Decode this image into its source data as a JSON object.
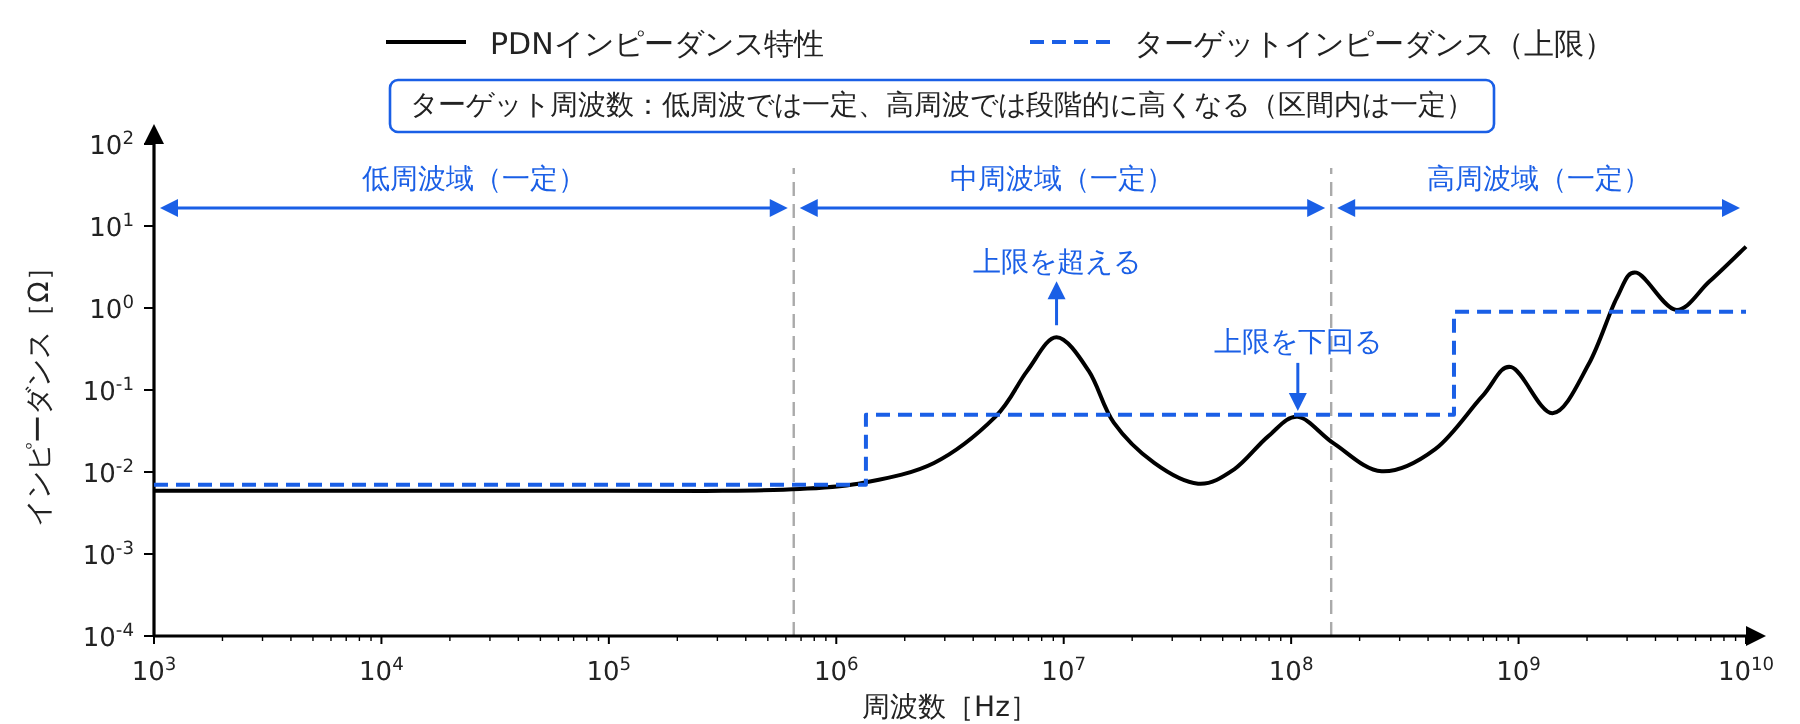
{
  "chart_data": {
    "type": "line",
    "log": "xy",
    "legend": "top",
    "marker": "none",
    "xlabel": "周波数［Hz］",
    "ylabel": "インピーダンス［Ω］",
    "xlim": [
      1000,
      10000000000
    ],
    "ylim": [
      0.0001,
      100
    ],
    "xticks": [
      {
        "value": 1000,
        "label": "10$^{3}$"
      },
      {
        "value": 10000,
        "label": "10$^{4}$"
      },
      {
        "value": 100000,
        "label": "10$^{5}$"
      },
      {
        "value": 1000000,
        "label": "10$^{6}$"
      },
      {
        "value": 10000000,
        "label": "10$^{7}$"
      },
      {
        "value": 100000000,
        "label": "10$^{8}$"
      },
      {
        "value": 1000000000,
        "label": "10$^{9}$"
      },
      {
        "value": 10000000000,
        "label": "10$^{10}$"
      }
    ],
    "yticks": [
      {
        "value": 0.0001,
        "label": "10$^{-4}$"
      },
      {
        "value": 0.001,
        "label": "10$^{-3}$"
      },
      {
        "value": 0.01,
        "label": "10$^{-2}$"
      },
      {
        "value": 0.1,
        "label": "10$^{-1}$"
      },
      {
        "value": 1,
        "label": "10$^{0}$"
      },
      {
        "value": 10,
        "label": "10$^{1}$"
      },
      {
        "value": 100,
        "label": "10$^{2}$"
      }
    ],
    "series": [
      {
        "name": "PDNインピーダンス特性",
        "type": "line",
        "line_style": "solid",
        "color": "#000000",
        "x": [
          1000,
          10000,
          100000,
          316000,
          692000,
          1320000,
          2690000,
          5000000,
          6900000,
          9300000,
          12900000,
          16600000,
          25000000,
          39000000,
          56000000,
          79000000,
          107000000,
          155000000,
          250000000,
          430000000,
          690000000,
          930000000,
          1410000000,
          2040000000,
          2700000000,
          3300000000,
          4900000000,
          6900000000,
          10000000000
        ],
        "values": [
          0.0059,
          0.0059,
          0.0059,
          0.0059,
          0.0062,
          0.0074,
          0.0129,
          0.047,
          0.17,
          0.44,
          0.17,
          0.04,
          0.0129,
          0.0072,
          0.0107,
          0.027,
          0.047,
          0.022,
          0.0102,
          0.019,
          0.083,
          0.19,
          0.052,
          0.21,
          1.32,
          2.7,
          0.95,
          2.1,
          5.6
        ]
      },
      {
        "name": "ターゲットインピーダンス（上限）",
        "type": "step",
        "line_style": "dashed",
        "color": "#1a5fe6",
        "x": [
          1000,
          1350000,
          520000000,
          10000000000
        ],
        "values": [
          0.007,
          0.05,
          0.9,
          0.9
        ]
      }
    ],
    "ref_lines": [
      {
        "axis": "x",
        "value": 650000,
        "color": "#aaaaaa",
        "line_style": "dashed"
      },
      {
        "axis": "x",
        "value": 150000000,
        "color": "#aaaaaa",
        "line_style": "dashed"
      }
    ],
    "annotations": [
      "ターゲット周波数：低周波では一定、高周波では段階的に高くなる（区間内は一定）",
      "低周波域（一定）",
      "中周波域（一定）",
      "高周波域（一定）",
      {
        "text": "上限を超える",
        "x": 9300000,
        "y": 0.44
      },
      {
        "text": "上限を下回る",
        "x": 107000000,
        "y": 0.047
      }
    ]
  }
}
